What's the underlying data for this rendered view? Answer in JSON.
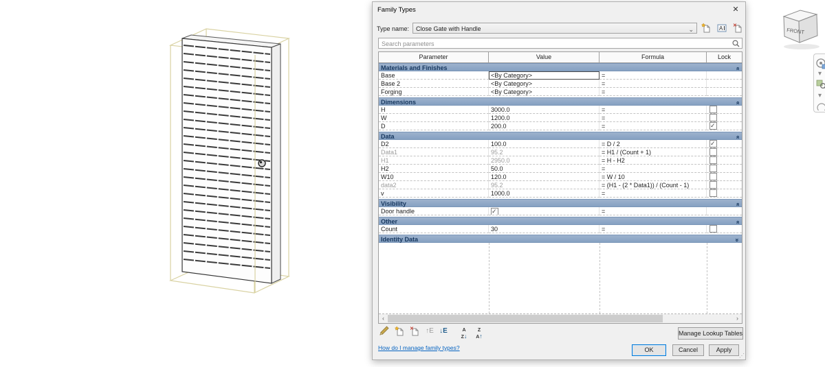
{
  "dialog": {
    "title": "Family Types",
    "close_glyph": "✕",
    "type_name_label": "Type name:",
    "type_name_value": "Close Gate with Handle",
    "search_placeholder": "Search parameters",
    "table": {
      "columns": [
        "Parameter",
        "Value",
        "Formula",
        "Lock"
      ],
      "sections": [
        {
          "name": "Materials and Finishes",
          "collapsed": false,
          "rows": [
            {
              "parameter": "Base",
              "value": "<By Category>",
              "formula": "=",
              "lock": "none",
              "selected": true,
              "gray": false,
              "value_type": "text"
            },
            {
              "parameter": "Base 2",
              "value": "<By Category>",
              "formula": "=",
              "lock": "none",
              "selected": false,
              "gray": false,
              "value_type": "text"
            },
            {
              "parameter": "Forging",
              "value": "<By Category>",
              "formula": "=",
              "lock": "none",
              "selected": false,
              "gray": false,
              "value_type": "text"
            }
          ]
        },
        {
          "name": "Dimensions",
          "collapsed": false,
          "rows": [
            {
              "parameter": "H",
              "value": "3000.0",
              "formula": "=",
              "lock": "unchecked",
              "selected": false,
              "gray": false,
              "value_type": "text"
            },
            {
              "parameter": "W",
              "value": "1200.0",
              "formula": "=",
              "lock": "unchecked",
              "selected": false,
              "gray": false,
              "value_type": "text"
            },
            {
              "parameter": "D",
              "value": "200.0",
              "formula": "=",
              "lock": "checked",
              "selected": false,
              "gray": false,
              "value_type": "text"
            }
          ]
        },
        {
          "name": "Data",
          "collapsed": false,
          "rows": [
            {
              "parameter": "D2",
              "value": "100.0",
              "formula": "= D / 2",
              "lock": "checked",
              "selected": false,
              "gray": false,
              "value_type": "text"
            },
            {
              "parameter": "Data1",
              "value": "95.2",
              "formula": "= H1 / (Count + 1)",
              "lock": "unchecked",
              "selected": false,
              "gray": true,
              "value_type": "text"
            },
            {
              "parameter": "H1",
              "value": "2950.0",
              "formula": "= H - H2",
              "lock": "unchecked",
              "selected": false,
              "gray": true,
              "value_type": "text"
            },
            {
              "parameter": "H2",
              "value": "50.0",
              "formula": "=",
              "lock": "unchecked",
              "selected": false,
              "gray": false,
              "value_type": "text"
            },
            {
              "parameter": "W10",
              "value": "120.0",
              "formula": "= W / 10",
              "lock": "unchecked",
              "selected": false,
              "gray": false,
              "value_type": "text"
            },
            {
              "parameter": "data2",
              "value": "95.2",
              "formula": "= (H1 - (2 * Data1)) / (Count - 1)",
              "lock": "unchecked",
              "selected": false,
              "gray": true,
              "value_type": "text"
            },
            {
              "parameter": "v",
              "value": "1000.0",
              "formula": "=",
              "lock": "unchecked",
              "selected": false,
              "gray": false,
              "value_type": "text"
            }
          ]
        },
        {
          "name": "Visibility",
          "collapsed": false,
          "rows": [
            {
              "parameter": "Door handle",
              "value": "checked",
              "formula": "=",
              "lock": "none",
              "selected": false,
              "gray": false,
              "value_type": "checkbox"
            }
          ]
        },
        {
          "name": "Other",
          "collapsed": false,
          "rows": [
            {
              "parameter": "Count",
              "value": "30",
              "formula": "=",
              "lock": "unchecked",
              "selected": false,
              "gray": false,
              "value_type": "text"
            }
          ]
        },
        {
          "name": "Identity Data",
          "collapsed": true,
          "rows": []
        }
      ]
    },
    "toolbar_icons": [
      "edit-parameter",
      "new-parameter",
      "delete-parameter",
      "move-up",
      "move-down",
      "sort-ascending",
      "sort-descending"
    ],
    "type_icons": [
      "new-type",
      "rename-type",
      "delete-type"
    ],
    "buttons": {
      "manage_lookup": "Manage Lookup Tables",
      "ok": "OK",
      "cancel": "Cancel",
      "apply": "Apply"
    },
    "help_link": "How do I manage family types?"
  },
  "viewcube": {
    "front_label": "FRONT"
  },
  "colors": {
    "section_header_bg": "#8ca7c6",
    "section_header_text": "#17375e",
    "link_blue": "#0563c1",
    "ok_focus_border": "#0078d7",
    "wireframe_yellow": "#d9d2a2",
    "slat_dark": "#3a3a3a"
  }
}
